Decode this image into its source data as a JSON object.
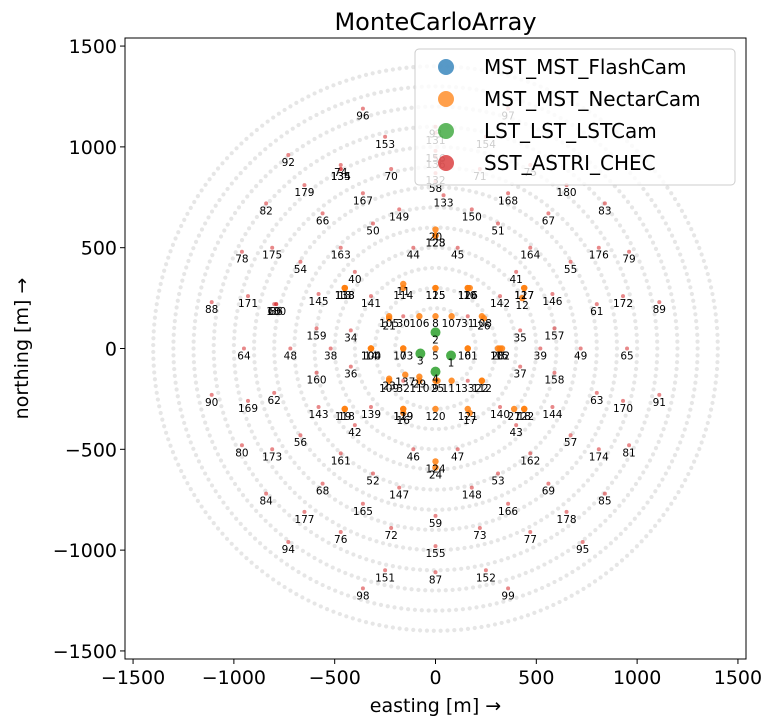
{
  "chart_data": {
    "type": "scatter",
    "title": "MonteCarloArray",
    "xlabel": "easting [m] →",
    "ylabel": "northing [m] →",
    "xlim": [
      -1540,
      1540
    ],
    "ylim": [
      -1540,
      1540
    ],
    "xticks": [
      -1500,
      -1000,
      -500,
      0,
      500,
      1000,
      1500
    ],
    "yticks": [
      -1500,
      -1000,
      -500,
      0,
      500,
      1000,
      1500
    ],
    "tick_labels_x": [
      "−1500",
      "−1000",
      "−500",
      "0",
      "500",
      "1000",
      "1500"
    ],
    "tick_labels_y": [
      "−1500",
      "−1000",
      "−500",
      "0",
      "500",
      "1000",
      "1500"
    ],
    "grid": false,
    "legend_position": "top-right",
    "series": [
      {
        "name": "MST_MST_FlashCam",
        "color": "#1f77b4"
      },
      {
        "name": "MST_MST_NectarCam",
        "color": "#ff7f0e"
      },
      {
        "name": "LST_LST_LSTCam",
        "color": "#2ca02c"
      },
      {
        "name": "SST_ASTRI_CHEC",
        "color": "#d62728"
      }
    ],
    "ring_dots": {
      "color": "#e6e6e6",
      "radii": [
        200,
        300,
        400,
        500,
        600,
        700,
        800,
        900,
        1000,
        1100,
        1200,
        1300,
        1400
      ],
      "spacing": 34
    },
    "telescopes": [
      {
        "id": "1",
        "x": 77,
        "y": -35,
        "s": 2
      },
      {
        "id": "2",
        "x": 0,
        "y": 80,
        "s": 2
      },
      {
        "id": "3",
        "x": -75,
        "y": -25,
        "s": 2
      },
      {
        "id": "4",
        "x": 0,
        "y": -115,
        "s": 2
      },
      {
        "id": "5",
        "x": 0,
        "y": 0,
        "s": 1
      },
      {
        "id": "6",
        "x": 160,
        "y": 0,
        "s": 1
      },
      {
        "id": "7",
        "x": -160,
        "y": 0,
        "s": 1
      },
      {
        "id": "8",
        "x": 0,
        "y": 160,
        "s": 1
      },
      {
        "id": "9",
        "x": 0,
        "y": -160,
        "s": 1
      },
      {
        "id": "10",
        "x": 170,
        "y": 300,
        "s": 1
      },
      {
        "id": "11",
        "x": -160,
        "y": 320,
        "s": 1
      },
      {
        "id": "12",
        "x": 430,
        "y": 250,
        "s": 1
      },
      {
        "id": "13",
        "x": -450,
        "y": 300,
        "s": 1
      },
      {
        "id": "14",
        "x": -320,
        "y": 0,
        "s": 1
      },
      {
        "id": "15",
        "x": 330,
        "y": 0,
        "s": 1
      },
      {
        "id": "16",
        "x": -160,
        "y": -320,
        "s": 1
      },
      {
        "id": "17",
        "x": 170,
        "y": -320,
        "s": 1
      },
      {
        "id": "18",
        "x": 440,
        "y": -300,
        "s": 1
      },
      {
        "id": "19",
        "x": -450,
        "y": -300,
        "s": 1
      },
      {
        "id": "20",
        "x": 0,
        "y": 590,
        "s": 1
      },
      {
        "id": "21",
        "x": -230,
        "y": 150,
        "s": 1
      },
      {
        "id": "22",
        "x": 230,
        "y": -160,
        "s": 1
      },
      {
        "id": "23",
        "x": -230,
        "y": -150,
        "s": 1
      },
      {
        "id": "24",
        "x": 0,
        "y": -590,
        "s": 1
      },
      {
        "id": "25",
        "x": 10,
        "y": -160,
        "s": 1
      },
      {
        "id": "26",
        "x": 240,
        "y": 150,
        "s": 1
      },
      {
        "id": "27",
        "x": 390,
        "y": -300,
        "s": 1
      },
      {
        "id": "28",
        "x": 310,
        "y": 0,
        "s": 1
      },
      {
        "id": "29",
        "x": -80,
        "y": -140,
        "s": 1
      },
      {
        "id": "30",
        "x": -160,
        "y": 160,
        "s": 3
      },
      {
        "id": "31",
        "x": 160,
        "y": 160,
        "s": 3
      },
      {
        "id": "32",
        "x": -160,
        "y": -160,
        "s": 3
      },
      {
        "id": "33",
        "x": 160,
        "y": -160,
        "s": 3
      },
      {
        "id": "34",
        "x": -420,
        "y": 90,
        "s": 3
      },
      {
        "id": "35",
        "x": 420,
        "y": 90,
        "s": 3
      },
      {
        "id": "36",
        "x": -420,
        "y": -90,
        "s": 3
      },
      {
        "id": "37",
        "x": 420,
        "y": -90,
        "s": 3
      },
      {
        "id": "38",
        "x": -520,
        "y": 0,
        "s": 3
      },
      {
        "id": "39",
        "x": 520,
        "y": 0,
        "s": 3
      },
      {
        "id": "40",
        "x": -400,
        "y": 380,
        "s": 3
      },
      {
        "id": "41",
        "x": 400,
        "y": 380,
        "s": 3
      },
      {
        "id": "42",
        "x": -400,
        "y": -380,
        "s": 3
      },
      {
        "id": "43",
        "x": 400,
        "y": -380,
        "s": 3
      },
      {
        "id": "44",
        "x": -110,
        "y": 500,
        "s": 3
      },
      {
        "id": "45",
        "x": 110,
        "y": 500,
        "s": 3
      },
      {
        "id": "46",
        "x": -110,
        "y": -500,
        "s": 3
      },
      {
        "id": "47",
        "x": 110,
        "y": -500,
        "s": 3
      },
      {
        "id": "48",
        "x": -720,
        "y": 0,
        "s": 3
      },
      {
        "id": "49",
        "x": 720,
        "y": 0,
        "s": 3
      },
      {
        "id": "50",
        "x": -310,
        "y": 620,
        "s": 3
      },
      {
        "id": "51",
        "x": 310,
        "y": 620,
        "s": 3
      },
      {
        "id": "52",
        "x": -310,
        "y": -620,
        "s": 3
      },
      {
        "id": "53",
        "x": 310,
        "y": -620,
        "s": 3
      },
      {
        "id": "54",
        "x": -670,
        "y": 430,
        "s": 3
      },
      {
        "id": "55",
        "x": 670,
        "y": 430,
        "s": 3
      },
      {
        "id": "56",
        "x": -670,
        "y": -430,
        "s": 3
      },
      {
        "id": "57",
        "x": 670,
        "y": -430,
        "s": 3
      },
      {
        "id": "58",
        "x": 0,
        "y": 830,
        "s": 3
      },
      {
        "id": "59",
        "x": 0,
        "y": -830,
        "s": 3
      },
      {
        "id": "60",
        "x": -800,
        "y": 220,
        "s": 3
      },
      {
        "id": "61",
        "x": 800,
        "y": 220,
        "s": 3
      },
      {
        "id": "62",
        "x": -800,
        "y": -220,
        "s": 3
      },
      {
        "id": "63",
        "x": 800,
        "y": -220,
        "s": 3
      },
      {
        "id": "64",
        "x": -950,
        "y": 0,
        "s": 3
      },
      {
        "id": "65",
        "x": 950,
        "y": 0,
        "s": 3
      },
      {
        "id": "66",
        "x": -560,
        "y": 670,
        "s": 3
      },
      {
        "id": "67",
        "x": 560,
        "y": 670,
        "s": 3
      },
      {
        "id": "68",
        "x": -560,
        "y": -670,
        "s": 3
      },
      {
        "id": "69",
        "x": 560,
        "y": -670,
        "s": 3
      },
      {
        "id": "70",
        "x": -220,
        "y": 890,
        "s": 3
      },
      {
        "id": "71",
        "x": 220,
        "y": 890,
        "s": 3
      },
      {
        "id": "72",
        "x": -220,
        "y": -890,
        "s": 3
      },
      {
        "id": "73",
        "x": 220,
        "y": -890,
        "s": 3
      },
      {
        "id": "74",
        "x": -470,
        "y": 910,
        "s": 3
      },
      {
        "id": "75",
        "x": 470,
        "y": 910,
        "s": 3
      },
      {
        "id": "76",
        "x": -470,
        "y": -910,
        "s": 3
      },
      {
        "id": "77",
        "x": 470,
        "y": -910,
        "s": 3
      },
      {
        "id": "78",
        "x": -960,
        "y": 480,
        "s": 3
      },
      {
        "id": "79",
        "x": 960,
        "y": 480,
        "s": 3
      },
      {
        "id": "80",
        "x": -960,
        "y": -480,
        "s": 3
      },
      {
        "id": "81",
        "x": 960,
        "y": -480,
        "s": 3
      },
      {
        "id": "82",
        "x": -840,
        "y": 720,
        "s": 3
      },
      {
        "id": "83",
        "x": 840,
        "y": 720,
        "s": 3
      },
      {
        "id": "84",
        "x": -840,
        "y": -720,
        "s": 3
      },
      {
        "id": "85",
        "x": 840,
        "y": -720,
        "s": 3
      },
      {
        "id": "86",
        "x": -790,
        "y": 220,
        "s": 3
      },
      {
        "id": "87",
        "x": 0,
        "y": -1110,
        "s": 3
      },
      {
        "id": "88",
        "x": -1110,
        "y": 230,
        "s": 3
      },
      {
        "id": "89",
        "x": 1110,
        "y": 230,
        "s": 3
      },
      {
        "id": "90",
        "x": -1110,
        "y": -230,
        "s": 3
      },
      {
        "id": "91",
        "x": 1110,
        "y": -230,
        "s": 3
      },
      {
        "id": "92",
        "x": -730,
        "y": 960,
        "s": 3
      },
      {
        "id": "93",
        "x": 0,
        "y": 1100,
        "s": 3
      },
      {
        "id": "94",
        "x": -730,
        "y": -960,
        "s": 3
      },
      {
        "id": "95",
        "x": 730,
        "y": -960,
        "s": 3
      },
      {
        "id": "96",
        "x": -360,
        "y": 1190,
        "s": 3
      },
      {
        "id": "97",
        "x": 360,
        "y": 1190,
        "s": 3
      },
      {
        "id": "98",
        "x": -360,
        "y": -1190,
        "s": 3
      },
      {
        "id": "99",
        "x": 360,
        "y": -1190,
        "s": 3
      },
      {
        "id": "100",
        "x": -320,
        "y": 0,
        "s": 1
      },
      {
        "id": "101",
        "x": 160,
        "y": 0,
        "s": 1
      },
      {
        "id": "102",
        "x": 320,
        "y": 0,
        "s": 1
      },
      {
        "id": "103",
        "x": -160,
        "y": 0,
        "s": 1
      },
      {
        "id": "104",
        "x": -320,
        "y": 0,
        "s": 1
      },
      {
        "id": "105",
        "x": -230,
        "y": 160,
        "s": 1
      },
      {
        "id": "106",
        "x": -80,
        "y": 160,
        "s": 1
      },
      {
        "id": "107",
        "x": 80,
        "y": 160,
        "s": 1
      },
      {
        "id": "108",
        "x": 230,
        "y": 160,
        "s": 1
      },
      {
        "id": "109",
        "x": -230,
        "y": -160,
        "s": 1
      },
      {
        "id": "110",
        "x": -80,
        "y": -160,
        "s": 1
      },
      {
        "id": "111",
        "x": 80,
        "y": -160,
        "s": 1
      },
      {
        "id": "112",
        "x": 230,
        "y": -160,
        "s": 1
      },
      {
        "id": "113",
        "x": -450,
        "y": 300,
        "s": 1
      },
      {
        "id": "114",
        "x": -160,
        "y": 300,
        "s": 1
      },
      {
        "id": "115",
        "x": 0,
        "y": 300,
        "s": 1
      },
      {
        "id": "116",
        "x": 160,
        "y": 300,
        "s": 1
      },
      {
        "id": "117",
        "x": 440,
        "y": 300,
        "s": 1
      },
      {
        "id": "118",
        "x": -450,
        "y": -300,
        "s": 1
      },
      {
        "id": "119",
        "x": -160,
        "y": -300,
        "s": 1
      },
      {
        "id": "120",
        "x": 0,
        "y": -300,
        "s": 1
      },
      {
        "id": "121",
        "x": 160,
        "y": -300,
        "s": 1
      },
      {
        "id": "122",
        "x": 440,
        "y": -300,
        "s": 1
      },
      {
        "id": "123",
        "x": 0,
        "y": 560,
        "s": 1
      },
      {
        "id": "124",
        "x": 0,
        "y": -560,
        "s": 1
      },
      {
        "id": "125",
        "x": 0,
        "y": 300,
        "s": 1
      },
      {
        "id": "126",
        "x": 160,
        "y": 300,
        "s": 1
      },
      {
        "id": "127",
        "x": 440,
        "y": 300,
        "s": 1
      },
      {
        "id": "128",
        "x": 0,
        "y": 560,
        "s": 1
      },
      {
        "id": "129",
        "x": -160,
        "y": -300,
        "s": 1
      },
      {
        "id": "130",
        "x": -790,
        "y": 220,
        "s": 3
      },
      {
        "id": "131",
        "x": 0,
        "y": 1070,
        "s": 3
      },
      {
        "id": "132",
        "x": 0,
        "y": 870,
        "s": 3
      },
      {
        "id": "133",
        "x": 40,
        "y": 760,
        "s": 3
      },
      {
        "id": "134",
        "x": -470,
        "y": 890,
        "s": 3
      },
      {
        "id": "135",
        "x": -470,
        "y": 890,
        "s": 3
      },
      {
        "id": "136",
        "x": 0,
        "y": 950,
        "s": 3
      },
      {
        "id": "137",
        "x": -150,
        "y": -130,
        "s": 1
      },
      {
        "id": "138",
        "x": -450,
        "y": 300,
        "s": 1
      },
      {
        "id": "139",
        "x": -320,
        "y": -290,
        "s": 3
      },
      {
        "id": "140",
        "x": 320,
        "y": -290,
        "s": 3
      },
      {
        "id": "141",
        "x": -320,
        "y": 260,
        "s": 3
      },
      {
        "id": "142",
        "x": 320,
        "y": 260,
        "s": 3
      },
      {
        "id": "143",
        "x": -580,
        "y": -290,
        "s": 3
      },
      {
        "id": "144",
        "x": 580,
        "y": -290,
        "s": 3
      },
      {
        "id": "145",
        "x": -580,
        "y": 270,
        "s": 3
      },
      {
        "id": "146",
        "x": 580,
        "y": 270,
        "s": 3
      },
      {
        "id": "147",
        "x": -180,
        "y": -690,
        "s": 3
      },
      {
        "id": "148",
        "x": 180,
        "y": -690,
        "s": 3
      },
      {
        "id": "149",
        "x": -180,
        "y": 690,
        "s": 3
      },
      {
        "id": "150",
        "x": 180,
        "y": 690,
        "s": 3
      },
      {
        "id": "151",
        "x": -250,
        "y": -1100,
        "s": 3
      },
      {
        "id": "152",
        "x": 250,
        "y": -1100,
        "s": 3
      },
      {
        "id": "153",
        "x": -250,
        "y": 1050,
        "s": 3
      },
      {
        "id": "154",
        "x": 250,
        "y": 1050,
        "s": 3
      },
      {
        "id": "155",
        "x": 0,
        "y": -980,
        "s": 3
      },
      {
        "id": "156",
        "x": 0,
        "y": 980,
        "s": 3
      },
      {
        "id": "157",
        "x": 590,
        "y": 100,
        "s": 3
      },
      {
        "id": "158",
        "x": 590,
        "y": -120,
        "s": 3
      },
      {
        "id": "159",
        "x": -590,
        "y": 100,
        "s": 3
      },
      {
        "id": "160",
        "x": -590,
        "y": -120,
        "s": 3
      },
      {
        "id": "161",
        "x": -470,
        "y": -520,
        "s": 3
      },
      {
        "id": "162",
        "x": 470,
        "y": -520,
        "s": 3
      },
      {
        "id": "163",
        "x": -470,
        "y": 500,
        "s": 3
      },
      {
        "id": "164",
        "x": 470,
        "y": 500,
        "s": 3
      },
      {
        "id": "165",
        "x": -360,
        "y": -770,
        "s": 3
      },
      {
        "id": "166",
        "x": 360,
        "y": -770,
        "s": 3
      },
      {
        "id": "167",
        "x": -360,
        "y": 770,
        "s": 3
      },
      {
        "id": "168",
        "x": 360,
        "y": 770,
        "s": 3
      },
      {
        "id": "169",
        "x": -930,
        "y": -260,
        "s": 3
      },
      {
        "id": "170",
        "x": 930,
        "y": -260,
        "s": 3
      },
      {
        "id": "171",
        "x": -930,
        "y": 260,
        "s": 3
      },
      {
        "id": "172",
        "x": 930,
        "y": 260,
        "s": 3
      },
      {
        "id": "173",
        "x": -810,
        "y": -500,
        "s": 3
      },
      {
        "id": "174",
        "x": 810,
        "y": -500,
        "s": 3
      },
      {
        "id": "175",
        "x": -810,
        "y": 500,
        "s": 3
      },
      {
        "id": "176",
        "x": 810,
        "y": 500,
        "s": 3
      },
      {
        "id": "177",
        "x": -650,
        "y": -810,
        "s": 3
      },
      {
        "id": "178",
        "x": 650,
        "y": -810,
        "s": 3
      },
      {
        "id": "179",
        "x": -650,
        "y": 810,
        "s": 3
      },
      {
        "id": "180",
        "x": 650,
        "y": 810,
        "s": 3
      }
    ]
  }
}
